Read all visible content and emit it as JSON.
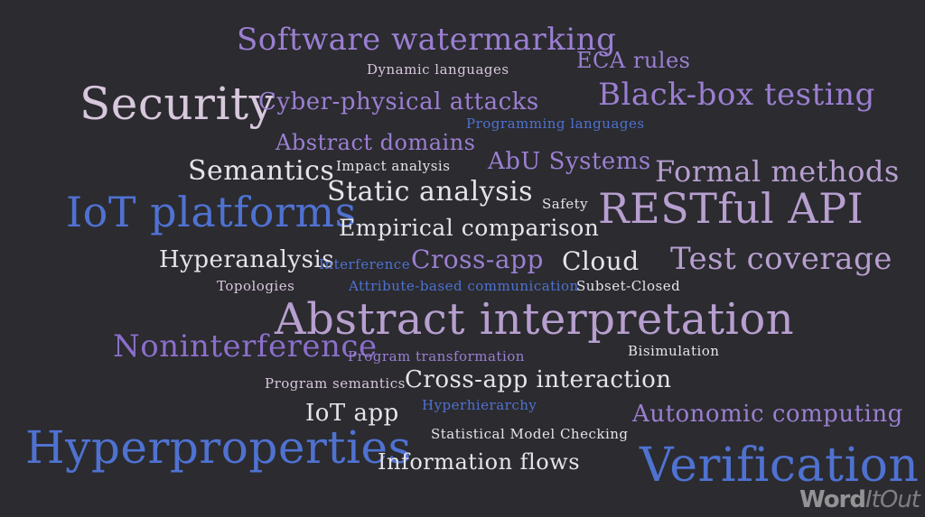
{
  "colors": {
    "background": "#2b2b30",
    "light": "#e6e3ea",
    "pink": "#d8c8dc",
    "lavender": "#b79fcf",
    "purple": "#9b7fd1",
    "violet": "#8b6fc9",
    "blue": "#4f72d1",
    "bright_blue": "#5a7fe0"
  },
  "words": [
    {
      "text": "Software watermarking",
      "color": "purple"
    },
    {
      "text": "ECA rules",
      "color": "purple"
    },
    {
      "text": "Dynamic languages",
      "color": "pink"
    },
    {
      "text": "Security",
      "color": "pink"
    },
    {
      "text": "Cyber-physical attacks",
      "color": "purple"
    },
    {
      "text": "Black-box testing",
      "color": "purple"
    },
    {
      "text": "Programming languages",
      "color": "blue"
    },
    {
      "text": "Abstract domains",
      "color": "purple"
    },
    {
      "text": "Semantics",
      "color": "light"
    },
    {
      "text": "Impact analysis",
      "color": "light"
    },
    {
      "text": "AbU Systems",
      "color": "purple"
    },
    {
      "text": "Formal methods",
      "color": "lavender"
    },
    {
      "text": "IoT platforms",
      "color": "blue"
    },
    {
      "text": "Static analysis",
      "color": "light"
    },
    {
      "text": "Safety",
      "color": "light"
    },
    {
      "text": "RESTful API",
      "color": "lavender"
    },
    {
      "text": "Empirical comparison",
      "color": "light"
    },
    {
      "text": "Hyperanalysis",
      "color": "light"
    },
    {
      "text": "Interference",
      "color": "blue"
    },
    {
      "text": "Cross-app",
      "color": "purple"
    },
    {
      "text": "Cloud",
      "color": "light"
    },
    {
      "text": "Test coverage",
      "color": "lavender"
    },
    {
      "text": "Topologies",
      "color": "pink"
    },
    {
      "text": "Attribute-based communication",
      "color": "blue"
    },
    {
      "text": "Subset-Closed",
      "color": "light"
    },
    {
      "text": "Abstract interpretation",
      "color": "lavender"
    },
    {
      "text": "Noninterference",
      "color": "violet"
    },
    {
      "text": "Program transformation",
      "color": "purple"
    },
    {
      "text": "Bisimulation",
      "color": "light"
    },
    {
      "text": "Program semantics",
      "color": "pink"
    },
    {
      "text": "Cross-app interaction",
      "color": "light"
    },
    {
      "text": "Hyperhierarchy",
      "color": "blue"
    },
    {
      "text": "IoT app",
      "color": "light"
    },
    {
      "text": "Autonomic computing",
      "color": "purple"
    },
    {
      "text": "Statistical Model Checking",
      "color": "light"
    },
    {
      "text": "Hyperproperties",
      "color": "blue"
    },
    {
      "text": "Information flows",
      "color": "light"
    },
    {
      "text": "Verification",
      "color": "blue"
    }
  ],
  "logo": {
    "primary": "Word",
    "secondary": "ItOut"
  }
}
